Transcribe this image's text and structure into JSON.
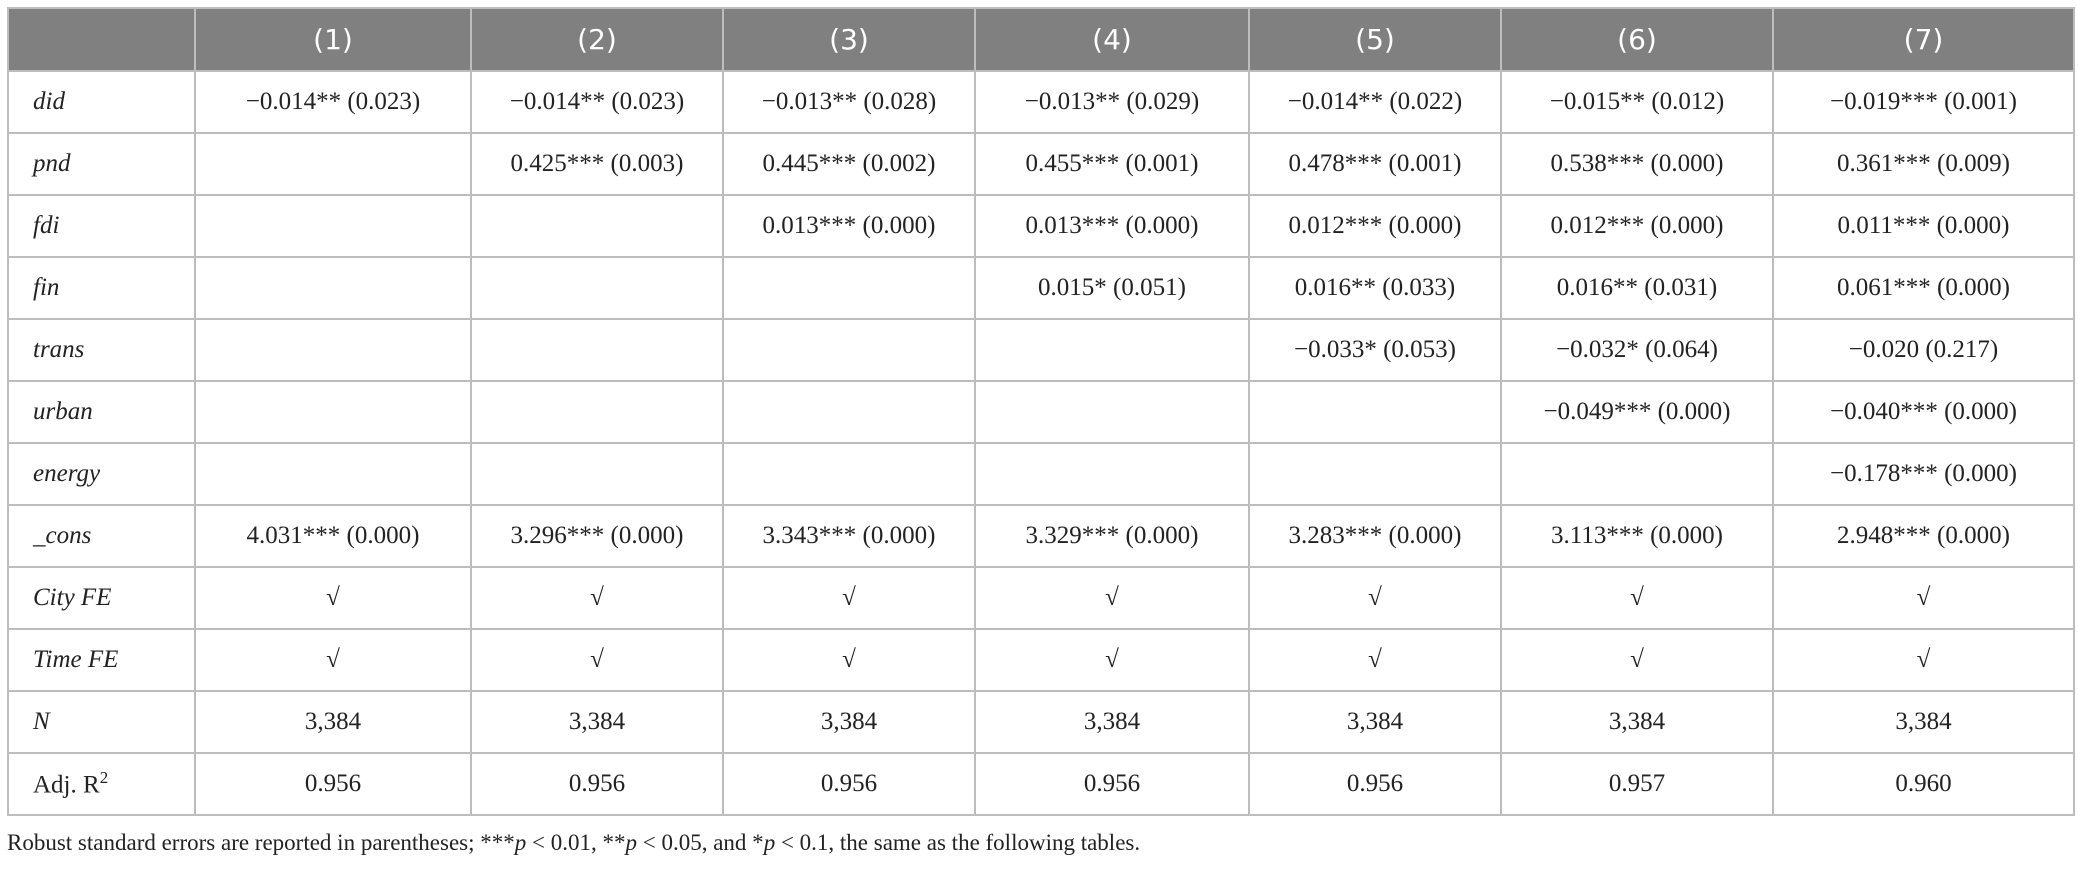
{
  "table": {
    "header": [
      "(1)",
      "(2)",
      "(3)",
      "(4)",
      "(5)",
      "(6)",
      "(7)"
    ],
    "rows": [
      {
        "label": "did",
        "cells": [
          "−0.014** (0.023)",
          "−0.014** (0.023)",
          "−0.013** (0.028)",
          "−0.013** (0.029)",
          "−0.014** (0.022)",
          "−0.015** (0.012)",
          "−0.019*** (0.001)"
        ]
      },
      {
        "label": "pnd",
        "cells": [
          null,
          "0.425*** (0.003)",
          "0.445*** (0.002)",
          "0.455*** (0.001)",
          "0.478*** (0.001)",
          "0.538*** (0.000)",
          "0.361*** (0.009)"
        ]
      },
      {
        "label": "fdi",
        "cells": [
          null,
          null,
          "0.013*** (0.000)",
          "0.013*** (0.000)",
          "0.012*** (0.000)",
          "0.012*** (0.000)",
          "0.011*** (0.000)"
        ]
      },
      {
        "label": "fin",
        "cells": [
          null,
          null,
          null,
          "0.015* (0.051)",
          "0.016** (0.033)",
          "0.016** (0.031)",
          "0.061*** (0.000)"
        ]
      },
      {
        "label": "trans",
        "cells": [
          null,
          null,
          null,
          null,
          "−0.033* (0.053)",
          "−0.032* (0.064)",
          "−0.020 (0.217)"
        ]
      },
      {
        "label": "urban",
        "cells": [
          null,
          null,
          null,
          null,
          null,
          "−0.049*** (0.000)",
          "−0.040*** (0.000)"
        ]
      },
      {
        "label": "energy",
        "cells": [
          null,
          null,
          null,
          null,
          null,
          null,
          "−0.178*** (0.000)"
        ]
      },
      {
        "label": "_cons",
        "cells": [
          "4.031*** (0.000)",
          "3.296*** (0.000)",
          "3.343*** (0.000)",
          "3.329*** (0.000)",
          "3.283*** (0.000)",
          "3.113*** (0.000)",
          "2.948*** (0.000)"
        ]
      },
      {
        "label": "City FE",
        "cells": [
          "√",
          "√",
          "√",
          "√",
          "√",
          "√",
          "√"
        ]
      },
      {
        "label": "Time FE",
        "cells": [
          "√",
          "√",
          "√",
          "√",
          "√",
          "√",
          "√"
        ]
      },
      {
        "label": "N",
        "cells": [
          "3,384",
          "3,384",
          "3,384",
          "3,384",
          "3,384",
          "3,384",
          "3,384"
        ]
      },
      {
        "label": "Adj. R",
        "label_sup": "2",
        "cells": [
          "0.956",
          "0.956",
          "0.956",
          "0.956",
          "0.956",
          "0.957",
          "0.960"
        ]
      }
    ]
  },
  "note": [
    "Robust standard errors are reported in parentheses; ***",
    "p",
    " < 0.01, **",
    "p",
    " < 0.05, and *",
    "p",
    " < 0.1, the same as the following tables."
  ]
}
